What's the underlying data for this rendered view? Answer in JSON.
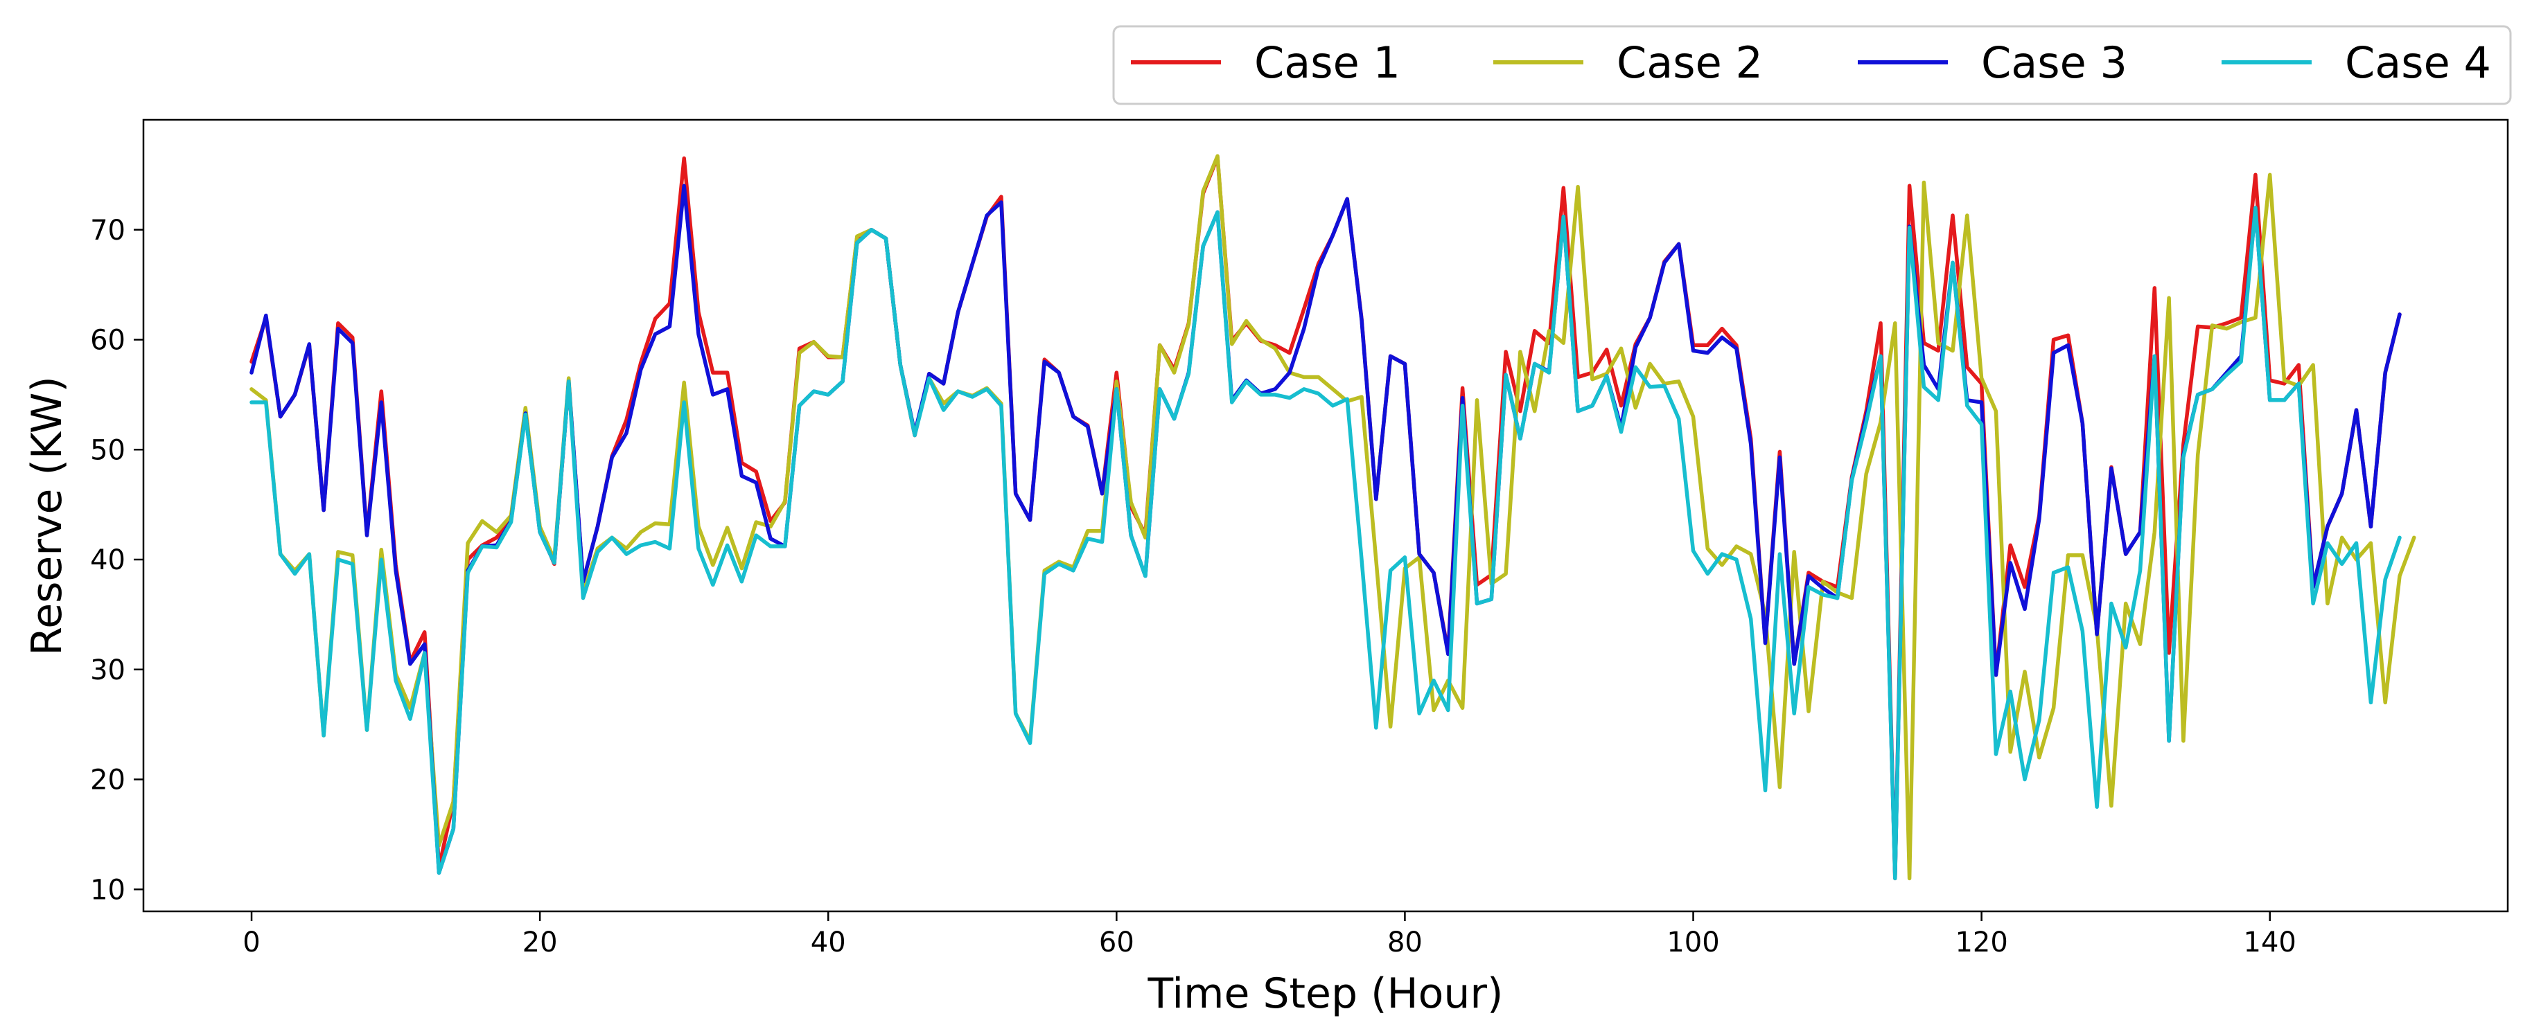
{
  "chart_data": {
    "type": "line",
    "title": "",
    "xlabel": "Time Step (Hour)",
    "ylabel": "Reserve (KW)",
    "xlim": [
      -7.5,
      156.5
    ],
    "ylim": [
      8,
      80
    ],
    "xticks": [
      0,
      20,
      40,
      60,
      80,
      100,
      120,
      140
    ],
    "yticks": [
      10,
      20,
      30,
      40,
      50,
      60,
      70
    ],
    "legend_position": "top-right, outside above plot",
    "series": [
      {
        "name": "Case 1",
        "color": "#e41a1c",
        "values": [
          58,
          62,
          53,
          55,
          59.5,
          44.5,
          61.5,
          60.2,
          42.3,
          55.3,
          39.5,
          30.7,
          33.4,
          12,
          18,
          40,
          41.3,
          42,
          43.6,
          53.3,
          42.8,
          39.6,
          56.2,
          38,
          43,
          49.4,
          52.7,
          57.9,
          61.9,
          63.3,
          76.5,
          62.5,
          57,
          57,
          48.8,
          48,
          43.5,
          45.2,
          59.2,
          59.8,
          58.4,
          58.4,
          69.3,
          70,
          69.2,
          57.7,
          51.3,
          56.9,
          56,
          62.5,
          66.9,
          71.2,
          73,
          46,
          43.6,
          58.2,
          57,
          53,
          52.2,
          46,
          57,
          44.8,
          42.3,
          59.5,
          57.3,
          61.5,
          73.3,
          76.6,
          59.9,
          61.5,
          59.9,
          59.5,
          58.8,
          62.8,
          66.9,
          69.5,
          72.8,
          61.9,
          45.5,
          58.5,
          57.8,
          40.5,
          38.8,
          31.6,
          55.6,
          37.7,
          38.6,
          58.9,
          53.5,
          60.8,
          59.7,
          73.8,
          56.6,
          57,
          59.1,
          54,
          59.6,
          62,
          67.1,
          68.7,
          59.5,
          59.5,
          61,
          59.5,
          51,
          32.5,
          49.8,
          30.5,
          38.8,
          38,
          37.5,
          47.5,
          53.5,
          61.5,
          11,
          74,
          59.7,
          59,
          71.3,
          57.5,
          56,
          29.5,
          41.3,
          37.5,
          44,
          60,
          60.4,
          52.4,
          33.2,
          48.4,
          40.5,
          42.5,
          64.7,
          31.5,
          50.5,
          61.2,
          61.1,
          61.5,
          62,
          75,
          56.3,
          56,
          57.7,
          37.5,
          43,
          46,
          53.6,
          43,
          57,
          62.3
        ]
      },
      {
        "name": "Case 2",
        "color": "#bcbd22",
        "values": [
          55.5,
          54.5,
          40.5,
          39,
          40.5,
          24,
          40.7,
          40.4,
          24.5,
          40.9,
          29.6,
          26.5,
          31.5,
          14,
          18,
          41.5,
          43.5,
          42.5,
          44,
          53.8,
          43,
          40,
          56.5,
          37,
          41,
          42,
          41,
          42.5,
          43.3,
          43.2,
          56.1,
          43,
          39.5,
          42.9,
          39.2,
          43.4,
          43,
          45.3,
          58.8,
          59.8,
          58.5,
          58.4,
          69.4,
          70,
          69.2,
          57.7,
          51.5,
          56.5,
          54.2,
          55.3,
          54.9,
          55.6,
          54.2,
          26,
          23.5,
          39,
          39.8,
          39.3,
          42.6,
          42.6,
          56.2,
          45.2,
          42,
          59.5,
          57,
          61.4,
          73.5,
          76.7,
          59.6,
          61.7,
          60,
          59.2,
          57,
          56.6,
          56.6,
          55.5,
          54.4,
          54.8,
          40,
          24.8,
          39.2,
          40.2,
          26.3,
          29,
          26.5,
          54.5,
          37.8,
          38.7,
          58.9,
          53.5,
          60.8,
          59.7,
          73.9,
          56.4,
          56.9,
          59.2,
          53.8,
          57.8,
          56,
          56.2,
          53,
          41,
          39.5,
          41.2,
          40.5,
          35,
          19.3,
          40.7,
          26.2,
          38,
          37,
          36.5,
          47.8,
          52.5,
          61.5,
          11,
          74.3,
          59.7,
          59,
          71.3,
          56.5,
          53.5,
          22.5,
          29.8,
          22,
          26.5,
          40.4,
          40.4,
          33.8,
          17.6,
          36,
          32.3,
          42.5,
          63.8,
          23.5,
          49.5,
          61.3,
          61,
          61.6,
          62,
          75,
          56.3,
          55.8,
          57.7,
          36,
          42,
          40,
          41.5,
          27,
          38.5,
          42
        ]
      },
      {
        "name": "Case 3",
        "color": "#1010d8",
        "values": [
          57,
          62.2,
          53,
          55,
          59.6,
          44.5,
          61,
          59.7,
          42.2,
          54.3,
          39,
          30.5,
          32.3,
          11.5,
          15.5,
          39,
          41.2,
          41.3,
          43.5,
          53.3,
          42.5,
          39.7,
          56.2,
          38,
          43,
          49.3,
          51.5,
          57.3,
          60.5,
          61.2,
          74,
          60.5,
          55,
          55.5,
          47.6,
          47,
          41.9,
          41.2,
          54,
          55.3,
          55,
          56.2,
          68.8,
          70,
          69.2,
          57.7,
          51.5,
          56.9,
          56,
          62.5,
          66.9,
          71.3,
          72.5,
          46,
          43.6,
          58,
          57,
          53,
          52.1,
          46,
          55.5,
          42.2,
          38.5,
          55.5,
          52.8,
          57,
          68.5,
          71.6,
          54.5,
          56.3,
          55.1,
          55.5,
          57,
          61,
          66.5,
          69.5,
          72.8,
          61.8,
          45.5,
          58.5,
          57.8,
          40.5,
          38.8,
          31.4,
          54.7,
          36,
          36.4,
          56.8,
          51,
          57.8,
          57.1,
          71.2,
          53.5,
          54,
          56.7,
          52,
          59.3,
          62,
          67,
          68.7,
          59,
          58.8,
          60.2,
          59.2,
          50.5,
          32.4,
          49.3,
          30.5,
          38.5,
          37.4,
          36.5,
          47.3,
          53,
          58.5,
          11.3,
          70.3,
          57.7,
          55.5,
          67,
          54.5,
          54.3,
          29.5,
          39.7,
          35.5,
          43.7,
          58.8,
          59.5,
          52.4,
          33.2,
          48.3,
          40.5,
          42.5,
          58.5,
          23.5,
          49.5,
          55,
          55.5,
          57,
          58.5,
          72,
          54.5,
          54.5,
          56,
          37.5,
          43,
          46,
          53.6,
          43,
          57,
          62.3
        ]
      },
      {
        "name": "Case 4",
        "color": "#17becf",
        "values": [
          54.3,
          54.3,
          40.5,
          38.7,
          40.5,
          24,
          40,
          39.6,
          24.5,
          40,
          29,
          25.5,
          31.5,
          11.5,
          15.5,
          38.8,
          41.2,
          41.1,
          43.4,
          53.2,
          42.5,
          39.7,
          56.2,
          36.5,
          40.7,
          42,
          40.5,
          41.3,
          41.6,
          41,
          54.3,
          41,
          37.7,
          41.3,
          38,
          42.2,
          41.2,
          41.2,
          54,
          55.3,
          55,
          56.2,
          68.8,
          70,
          69.2,
          57.7,
          51.3,
          56.5,
          53.6,
          55.3,
          54.8,
          55.5,
          54,
          26,
          23.3,
          38.7,
          39.6,
          39,
          41.9,
          41.6,
          55.5,
          42.2,
          38.5,
          55.5,
          52.8,
          56.9,
          68.5,
          71.6,
          54.3,
          56.2,
          55,
          55,
          54.7,
          55.5,
          55.1,
          54,
          54.6,
          40,
          24.7,
          39,
          40.2,
          26,
          29,
          26.3,
          54,
          36,
          36.4,
          56.8,
          51,
          57.8,
          57,
          71.2,
          53.5,
          54,
          56.7,
          51.6,
          57.5,
          55.7,
          55.8,
          52.8,
          40.8,
          38.7,
          40.5,
          40,
          34.6,
          19,
          40.5,
          26,
          37.5,
          36.8,
          36.5,
          47.2,
          52.5,
          58.5,
          11,
          70.2,
          55.7,
          54.5,
          67,
          54,
          52.3,
          22.3,
          28,
          20,
          25.4,
          38.8,
          39.3,
          33.5,
          17.5,
          36,
          32,
          39,
          58.5,
          23.5,
          49.3,
          55,
          55.5,
          56.8,
          58,
          72,
          54.5,
          54.5,
          56,
          36,
          41.5,
          39.6,
          41.5,
          27,
          38.2,
          42
        ]
      }
    ]
  }
}
